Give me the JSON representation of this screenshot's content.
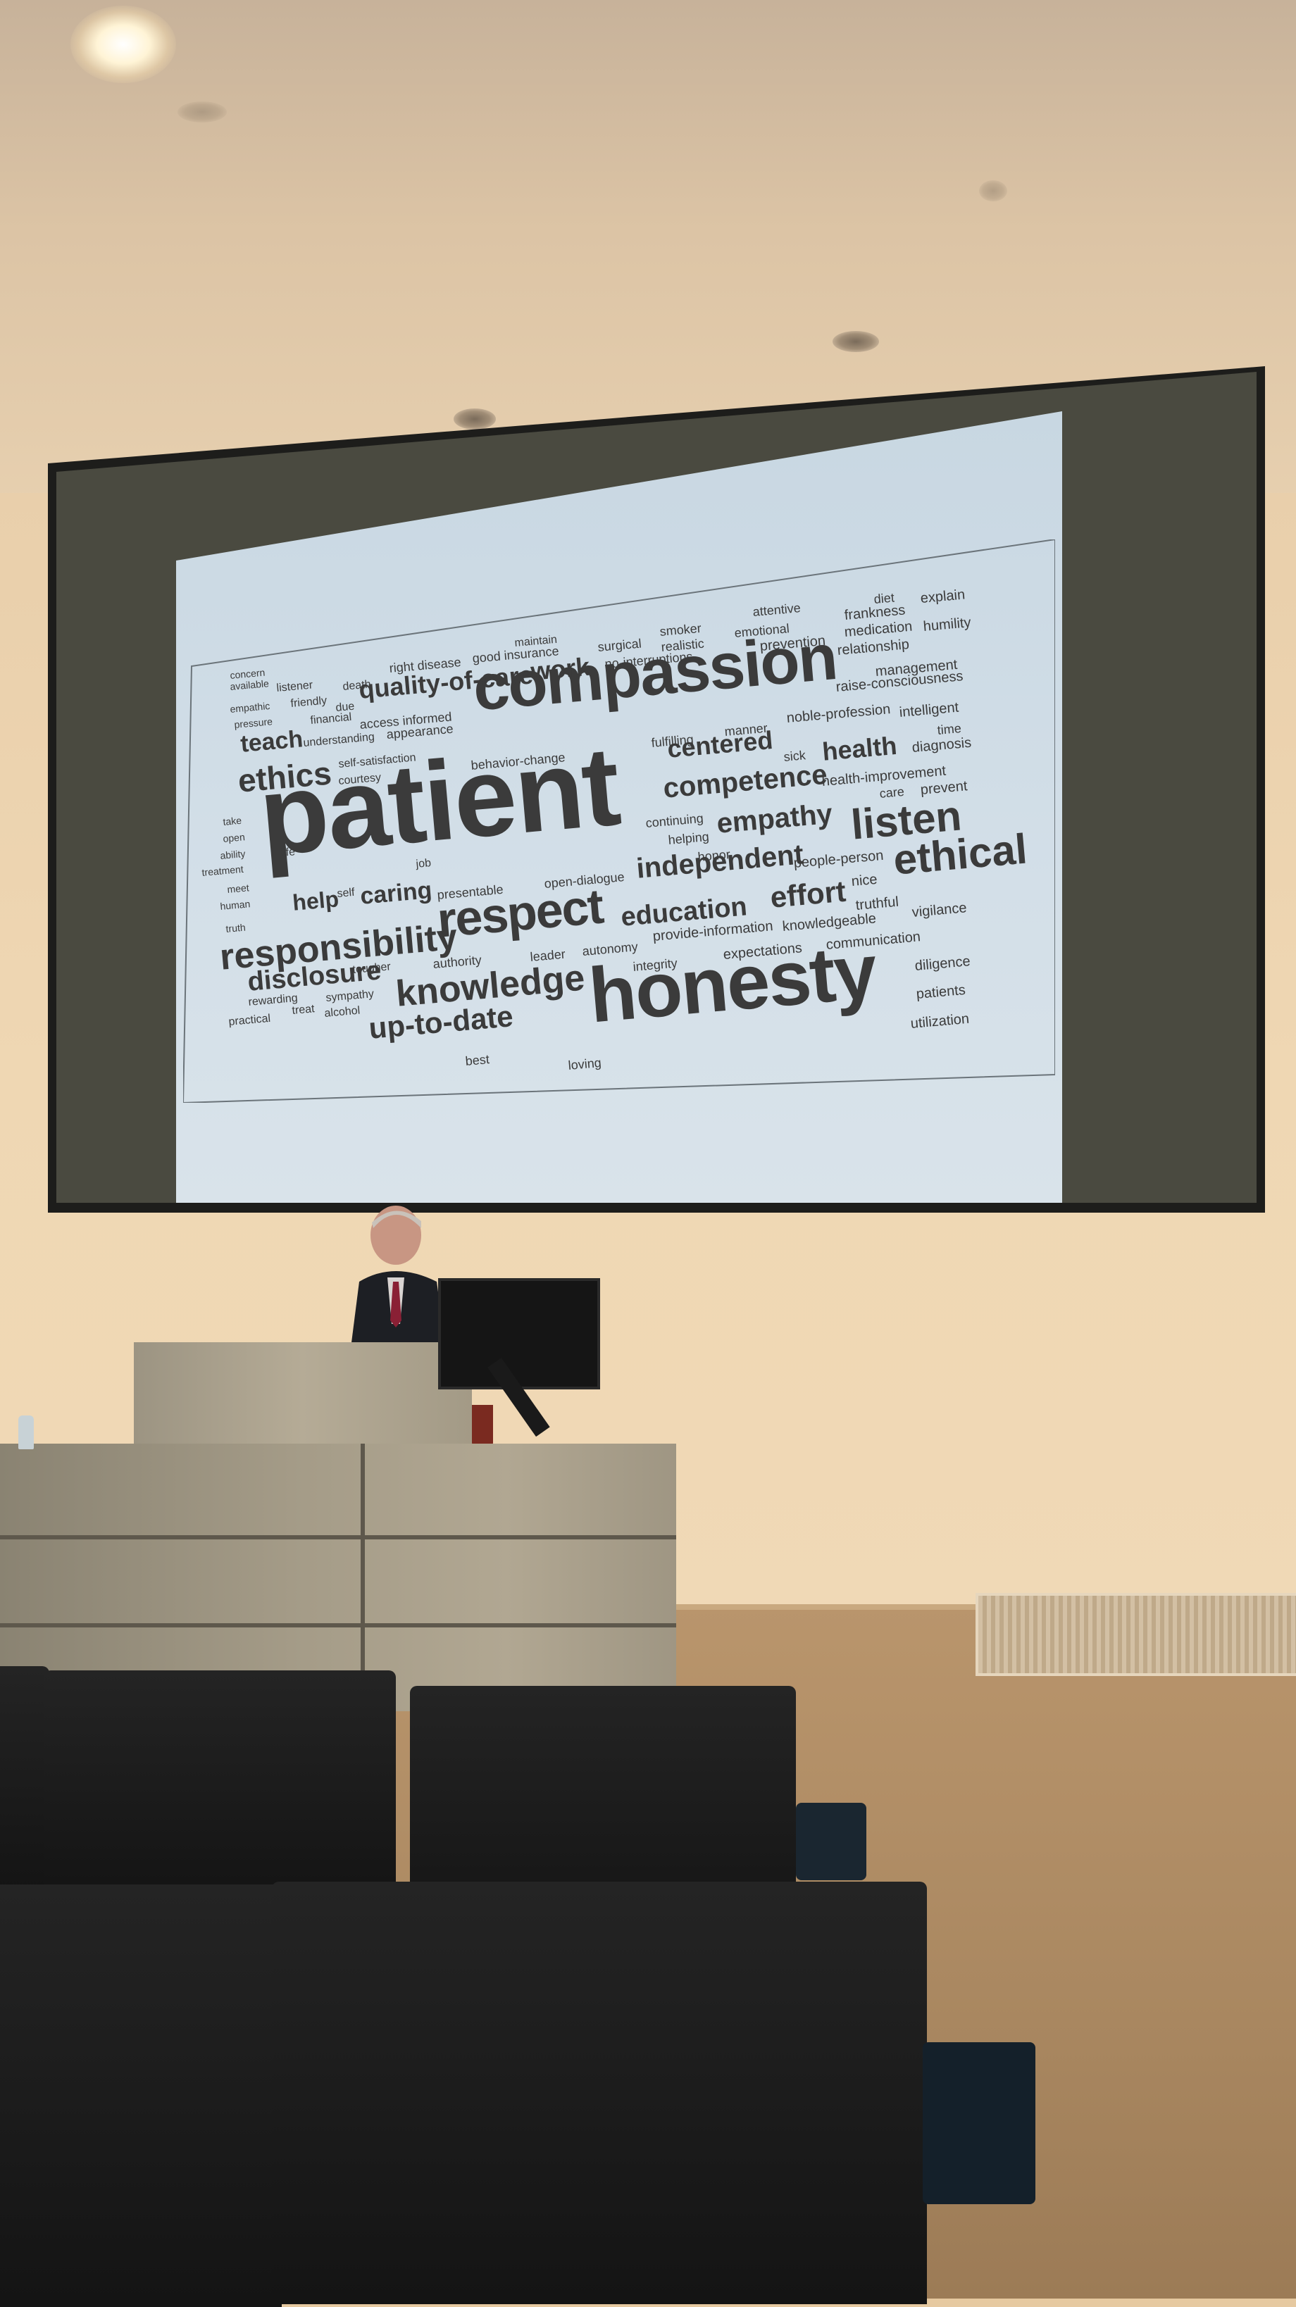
{
  "slide": {
    "words": [
      {
        "text": "compassion",
        "size": 92,
        "weight": "bold"
      },
      {
        "text": "patient",
        "size": 160,
        "weight": "bold"
      },
      {
        "text": "honesty",
        "size": 110,
        "weight": "bold"
      },
      {
        "text": "respect",
        "size": 70,
        "weight": "bold"
      },
      {
        "text": "responsibility",
        "size": 52,
        "weight": "bold"
      },
      {
        "text": "knowledge",
        "size": 52,
        "weight": "bold"
      },
      {
        "text": "listen",
        "size": 60,
        "weight": "bold"
      },
      {
        "text": "ethical",
        "size": 60,
        "weight": "bold"
      },
      {
        "text": "ethics",
        "size": 46,
        "weight": "bold"
      },
      {
        "text": "quality-of-care",
        "size": 36,
        "weight": "bold"
      },
      {
        "text": "work",
        "size": 36,
        "weight": "bold"
      },
      {
        "text": "teach",
        "size": 34,
        "weight": "bold"
      },
      {
        "text": "centered",
        "size": 36,
        "weight": "bold"
      },
      {
        "text": "health",
        "size": 36,
        "weight": "bold"
      },
      {
        "text": "competence",
        "size": 40,
        "weight": "bold"
      },
      {
        "text": "empathy",
        "size": 40,
        "weight": "bold"
      },
      {
        "text": "independent",
        "size": 40,
        "weight": "bold"
      },
      {
        "text": "education",
        "size": 38,
        "weight": "bold"
      },
      {
        "text": "effort",
        "size": 42,
        "weight": "bold"
      },
      {
        "text": "disclosure",
        "size": 38,
        "weight": "bold"
      },
      {
        "text": "up-to-date",
        "size": 42,
        "weight": "bold"
      },
      {
        "text": "help",
        "size": 32,
        "weight": "bold"
      },
      {
        "text": "caring",
        "size": 34,
        "weight": "bold"
      },
      {
        "text": "maintain",
        "size": 16,
        "weight": "normal"
      },
      {
        "text": "good insurance",
        "size": 18,
        "weight": "normal"
      },
      {
        "text": "right disease",
        "size": 18,
        "weight": "normal"
      },
      {
        "text": "surgical",
        "size": 18,
        "weight": "normal"
      },
      {
        "text": "smoker",
        "size": 18,
        "weight": "normal"
      },
      {
        "text": "realistic",
        "size": 18,
        "weight": "normal"
      },
      {
        "text": "attentive",
        "size": 18,
        "weight": "normal"
      },
      {
        "text": "emotional",
        "size": 18,
        "weight": "normal"
      },
      {
        "text": "prevention",
        "size": 20,
        "weight": "normal"
      },
      {
        "text": "diet",
        "size": 18,
        "weight": "normal"
      },
      {
        "text": "explain",
        "size": 20,
        "weight": "normal"
      },
      {
        "text": "frankness",
        "size": 20,
        "weight": "normal"
      },
      {
        "text": "medication",
        "size": 20,
        "weight": "normal"
      },
      {
        "text": "humility",
        "size": 20,
        "weight": "normal"
      },
      {
        "text": "relationship",
        "size": 20,
        "weight": "normal"
      },
      {
        "text": "management",
        "size": 20,
        "weight": "normal"
      },
      {
        "text": "no-interruptions",
        "size": 18,
        "weight": "normal"
      },
      {
        "text": "raise-consciousness",
        "size": 20,
        "weight": "normal"
      },
      {
        "text": "manner",
        "size": 18,
        "weight": "normal"
      },
      {
        "text": "noble-profession",
        "size": 20,
        "weight": "normal"
      },
      {
        "text": "intelligent",
        "size": 20,
        "weight": "normal"
      },
      {
        "text": "time",
        "size": 18,
        "weight": "normal"
      },
      {
        "text": "fulfilling",
        "size": 18,
        "weight": "normal"
      },
      {
        "text": "sick",
        "size": 18,
        "weight": "normal"
      },
      {
        "text": "diagnosis",
        "size": 20,
        "weight": "normal"
      },
      {
        "text": "health-improvement",
        "size": 20,
        "weight": "normal"
      },
      {
        "text": "care",
        "size": 18,
        "weight": "normal"
      },
      {
        "text": "prevent",
        "size": 20,
        "weight": "normal"
      },
      {
        "text": "continuing",
        "size": 18,
        "weight": "normal"
      },
      {
        "text": "helping",
        "size": 18,
        "weight": "normal"
      },
      {
        "text": "honor",
        "size": 18,
        "weight": "normal"
      },
      {
        "text": "people-person",
        "size": 20,
        "weight": "normal"
      },
      {
        "text": "nice",
        "size": 20,
        "weight": "normal"
      },
      {
        "text": "truthful",
        "size": 20,
        "weight": "normal"
      },
      {
        "text": "vigilance",
        "size": 20,
        "weight": "normal"
      },
      {
        "text": "communication",
        "size": 20,
        "weight": "normal"
      },
      {
        "text": "knowledgeable",
        "size": 20,
        "weight": "normal"
      },
      {
        "text": "provide-information",
        "size": 20,
        "weight": "normal"
      },
      {
        "text": "expectations",
        "size": 20,
        "weight": "normal"
      },
      {
        "text": "diligence",
        "size": 20,
        "weight": "normal"
      },
      {
        "text": "patients",
        "size": 20,
        "weight": "normal"
      },
      {
        "text": "utilization",
        "size": 20,
        "weight": "normal"
      },
      {
        "text": "integrity",
        "size": 18,
        "weight": "normal"
      },
      {
        "text": "autonomy",
        "size": 18,
        "weight": "normal"
      },
      {
        "text": "leader",
        "size": 18,
        "weight": "normal"
      },
      {
        "text": "open-dialogue",
        "size": 18,
        "weight": "normal"
      },
      {
        "text": "presentable",
        "size": 18,
        "weight": "normal"
      },
      {
        "text": "job",
        "size": 16,
        "weight": "normal"
      },
      {
        "text": "authority",
        "size": 18,
        "weight": "normal"
      },
      {
        "text": "behavior-change",
        "size": 18,
        "weight": "normal"
      },
      {
        "text": "self-satisfaction",
        "size": 16,
        "weight": "normal"
      },
      {
        "text": "courtesy",
        "size": 16,
        "weight": "normal"
      },
      {
        "text": "access informed",
        "size": 18,
        "weight": "normal"
      },
      {
        "text": "appearance",
        "size": 18,
        "weight": "normal"
      },
      {
        "text": "financial",
        "size": 16,
        "weight": "normal"
      },
      {
        "text": "understanding",
        "size": 16,
        "weight": "normal"
      },
      {
        "text": "death",
        "size": 16,
        "weight": "normal"
      },
      {
        "text": "due",
        "size": 16,
        "weight": "normal"
      },
      {
        "text": "friendly",
        "size": 16,
        "weight": "normal"
      },
      {
        "text": "listener",
        "size": 16,
        "weight": "normal"
      },
      {
        "text": "empathic",
        "size": 14,
        "weight": "normal"
      },
      {
        "text": "pressure",
        "size": 14,
        "weight": "normal"
      },
      {
        "text": "available",
        "size": 14,
        "weight": "normal"
      },
      {
        "text": "concern",
        "size": 14,
        "weight": "normal"
      },
      {
        "text": "take",
        "size": 14,
        "weight": "normal"
      },
      {
        "text": "open",
        "size": 14,
        "weight": "normal"
      },
      {
        "text": "ability",
        "size": 14,
        "weight": "normal"
      },
      {
        "text": "treatment",
        "size": 14,
        "weight": "normal"
      },
      {
        "text": "meet",
        "size": 14,
        "weight": "normal"
      },
      {
        "text": "human",
        "size": 14,
        "weight": "normal"
      },
      {
        "text": "truth",
        "size": 14,
        "weight": "normal"
      },
      {
        "text": "life",
        "size": 16,
        "weight": "normal"
      },
      {
        "text": "self",
        "size": 16,
        "weight": "normal"
      },
      {
        "text": "tougher",
        "size": 16,
        "weight": "normal"
      },
      {
        "text": "sympathy",
        "size": 16,
        "weight": "normal"
      },
      {
        "text": "rewarding",
        "size": 16,
        "weight": "normal"
      },
      {
        "text": "treat",
        "size": 16,
        "weight": "normal"
      },
      {
        "text": "practical",
        "size": 16,
        "weight": "normal"
      },
      {
        "text": "alcohol",
        "size": 16,
        "weight": "normal"
      },
      {
        "text": "best",
        "size": 18,
        "weight": "normal"
      },
      {
        "text": "loving",
        "size": 18,
        "weight": "normal"
      }
    ]
  },
  "colors": {
    "slide_bg": "#cdd9e3",
    "word": "#3b3b3b",
    "screen_frame": "#1d1d1b",
    "wall": "#efd7b3",
    "floor": "#a98760"
  }
}
